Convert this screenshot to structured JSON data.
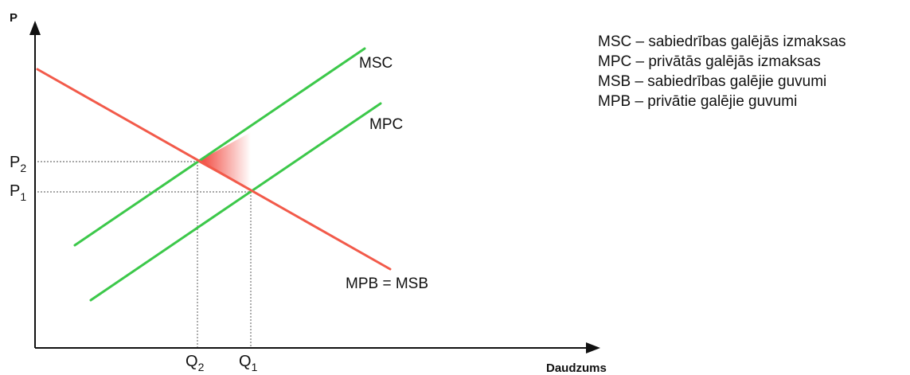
{
  "axes": {
    "y_label": "P",
    "x_label": "Daudzums"
  },
  "curves": {
    "msc": {
      "label": "MSC",
      "color": "#3cc84a"
    },
    "mpc": {
      "label": "MPC",
      "color": "#3cc84a"
    },
    "demand": {
      "label": "MPB = MSB",
      "color": "#f25a4a"
    }
  },
  "ticks": {
    "p2": {
      "main": "P",
      "sub": "2"
    },
    "p1": {
      "main": "P",
      "sub": "1"
    },
    "q2": {
      "main": "Q",
      "sub": "2"
    },
    "q1": {
      "main": "Q",
      "sub": "1"
    }
  },
  "deadweight_loss": {
    "color": "#f03c32"
  },
  "legend": [
    "MSC – sabiedrības galējās izmaksas",
    "MPC – privātās galējās izmaksas",
    "MSB – sabiedrības galējie guvumi",
    "MPB – privātie galējie guvumi"
  ]
}
